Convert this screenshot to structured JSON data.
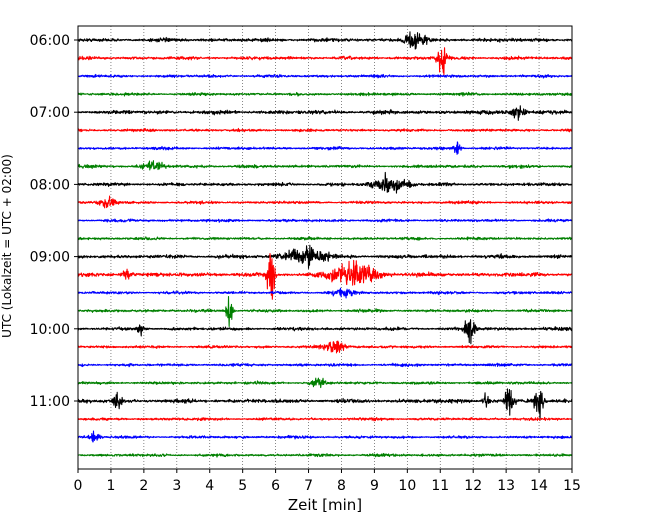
{
  "chart_data": {
    "type": "line",
    "title": "",
    "xlabel": "Zeit  [min]",
    "ylabel": "UTC (Lokalzeit = UTC + 02:00)",
    "xlim": [
      0,
      15
    ],
    "x_ticks": [
      0,
      1,
      2,
      3,
      4,
      5,
      6,
      7,
      8,
      9,
      10,
      11,
      12,
      13,
      14,
      15
    ],
    "y_tick_labels": [
      "06:00",
      "07:00",
      "08:00",
      "09:00",
      "10:00",
      "11:00"
    ],
    "grid": "vertical dotted at each minute",
    "traces_per_hour": 4,
    "trace_colors": [
      "#000000",
      "#ff0000",
      "#0000ff",
      "#008000"
    ],
    "traces": [
      {
        "label": "06:00",
        "color": "#000000",
        "noise": 0.09,
        "events": [
          {
            "t": 10.2,
            "amp": 0.45,
            "dur": 0.9
          }
        ]
      },
      {
        "label": "06:15",
        "color": "#ff0000",
        "noise": 0.08,
        "events": [
          {
            "t": 11.05,
            "amp": 1.0,
            "dur": 0.35
          }
        ]
      },
      {
        "label": "06:30",
        "color": "#0000ff",
        "noise": 0.07,
        "events": []
      },
      {
        "label": "06:45",
        "color": "#008000",
        "noise": 0.07,
        "events": []
      },
      {
        "label": "07:00",
        "color": "#000000",
        "noise": 0.1,
        "events": [
          {
            "t": 13.4,
            "amp": 0.35,
            "dur": 0.6
          }
        ]
      },
      {
        "label": "07:15",
        "color": "#ff0000",
        "noise": 0.07,
        "events": []
      },
      {
        "label": "07:30",
        "color": "#0000ff",
        "noise": 0.07,
        "events": [
          {
            "t": 11.5,
            "amp": 0.35,
            "dur": 0.3
          }
        ]
      },
      {
        "label": "07:45",
        "color": "#008000",
        "noise": 0.08,
        "events": [
          {
            "t": 2.3,
            "amp": 0.28,
            "dur": 0.8
          }
        ]
      },
      {
        "label": "08:00",
        "color": "#000000",
        "noise": 0.08,
        "events": [
          {
            "t": 9.5,
            "amp": 0.45,
            "dur": 1.4
          }
        ]
      },
      {
        "label": "08:15",
        "color": "#ff0000",
        "noise": 0.07,
        "events": [
          {
            "t": 0.9,
            "amp": 0.3,
            "dur": 0.6
          }
        ]
      },
      {
        "label": "08:30",
        "color": "#0000ff",
        "noise": 0.07,
        "events": []
      },
      {
        "label": "08:45",
        "color": "#008000",
        "noise": 0.07,
        "events": []
      },
      {
        "label": "09:00",
        "color": "#000000",
        "noise": 0.1,
        "events": [
          {
            "t": 6.9,
            "amp": 0.55,
            "dur": 1.6
          }
        ]
      },
      {
        "label": "09:15",
        "color": "#ff0000",
        "noise": 0.1,
        "events": [
          {
            "t": 5.85,
            "amp": 1.7,
            "dur": 0.3
          },
          {
            "t": 8.4,
            "amp": 0.6,
            "dur": 2.0
          },
          {
            "t": 1.5,
            "amp": 0.3,
            "dur": 0.4
          }
        ]
      },
      {
        "label": "09:30",
        "color": "#0000ff",
        "noise": 0.07,
        "events": [
          {
            "t": 8.0,
            "amp": 0.25,
            "dur": 0.8
          }
        ]
      },
      {
        "label": "09:45",
        "color": "#008000",
        "noise": 0.07,
        "events": [
          {
            "t": 4.6,
            "amp": 1.0,
            "dur": 0.25
          }
        ]
      },
      {
        "label": "10:00",
        "color": "#000000",
        "noise": 0.08,
        "events": [
          {
            "t": 11.9,
            "amp": 0.7,
            "dur": 0.4
          },
          {
            "t": 1.9,
            "amp": 0.3,
            "dur": 0.3
          }
        ]
      },
      {
        "label": "10:15",
        "color": "#ff0000",
        "noise": 0.07,
        "events": [
          {
            "t": 7.8,
            "amp": 0.35,
            "dur": 0.9
          }
        ]
      },
      {
        "label": "10:30",
        "color": "#0000ff",
        "noise": 0.07,
        "events": []
      },
      {
        "label": "10:45",
        "color": "#008000",
        "noise": 0.07,
        "events": [
          {
            "t": 7.3,
            "amp": 0.3,
            "dur": 0.5
          }
        ]
      },
      {
        "label": "11:00",
        "color": "#000000",
        "noise": 0.1,
        "events": [
          {
            "t": 13.1,
            "amp": 1.2,
            "dur": 0.3
          },
          {
            "t": 14.0,
            "amp": 1.5,
            "dur": 0.3
          },
          {
            "t": 12.4,
            "amp": 0.4,
            "dur": 0.3
          },
          {
            "t": 1.2,
            "amp": 0.3,
            "dur": 0.4
          }
        ]
      },
      {
        "label": "11:15",
        "color": "#ff0000",
        "noise": 0.07,
        "events": []
      },
      {
        "label": "11:30",
        "color": "#0000ff",
        "noise": 0.07,
        "events": [
          {
            "t": 0.5,
            "amp": 0.3,
            "dur": 0.4
          }
        ]
      },
      {
        "label": "11:45",
        "color": "#008000",
        "noise": 0.07,
        "events": []
      }
    ]
  }
}
